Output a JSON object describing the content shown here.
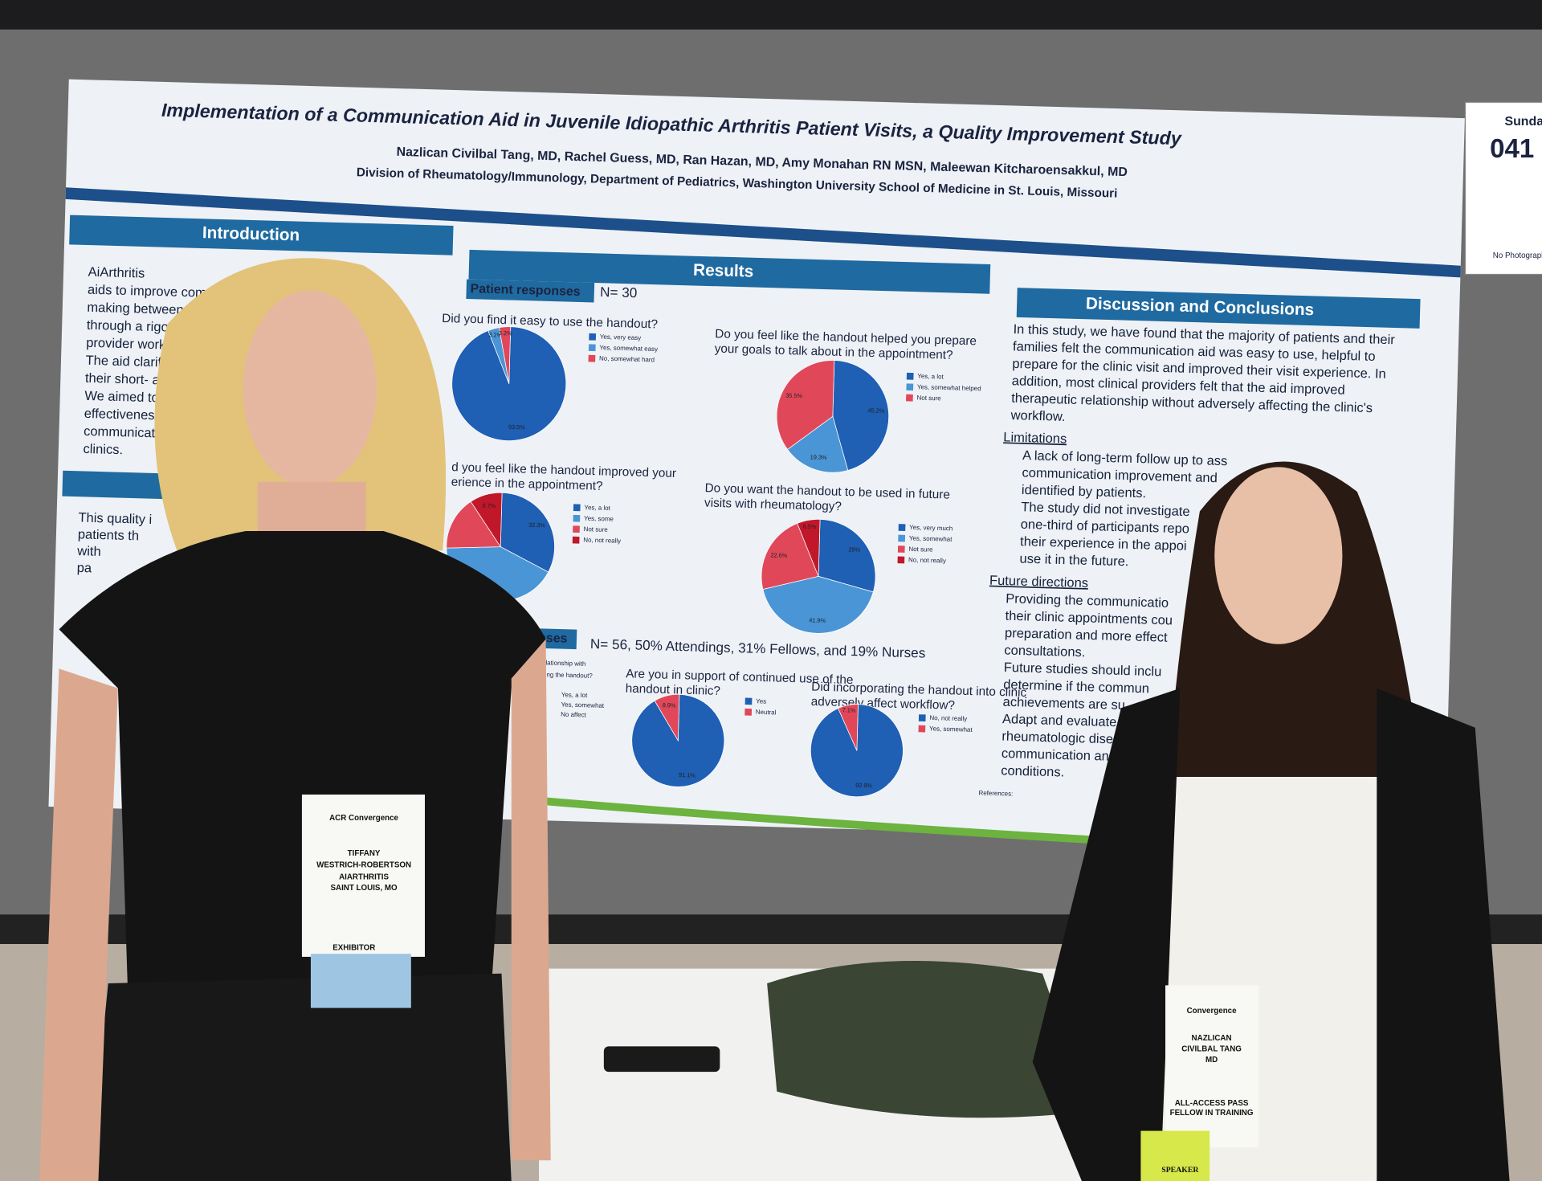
{
  "sign": {
    "day": "Sunda",
    "number": "041",
    "note": "No Photograph"
  },
  "poster": {
    "title": "Implementation of a Communication Aid in Juvenile Idiopathic Arthritis Patient Visits, a Quality Improvement Study",
    "authors": "Nazlican Civilbal Tang, MD, Rachel Guess, MD, Ran Hazan, MD, Amy Monahan RN MSN, Maleewan Kitcharoensakkul, MD",
    "affiliation": "Division of Rheumatology/Immunology, Department of Pediatrics, Washington University School of Medicine in St. Louis, Missouri",
    "introduction": {
      "heading": "Introduction",
      "lines": [
        "AiArthritis",
        "aids to improve comm",
        "making between JIA",
        "through a rigorous s",
        "provider workgroup",
        "The aid clarifies th",
        "their short- and lo",
        "We aimed to ev",
        "effectiveness o",
        "communicatio",
        "clinics."
      ]
    },
    "methods": {
      "lines": [
        "This quality i",
        "patients th",
        "with",
        "pa"
      ]
    },
    "results": {
      "heading": "Results",
      "patient_label": "Patient responses",
      "patient_n": "N= 30",
      "provider_label": "onses",
      "provider_n": "N= 56, 50% Attendings, 31% Fellows, and 19% Nurses",
      "partial_question": [
        "eutic relationship with",
        "d by using the handout?"
      ],
      "partial_legend": [
        "Yes, a lot",
        "Yes, somewhat",
        "No affect"
      ]
    },
    "discussion": {
      "heading": "Discussion and Conclusions",
      "lines": [
        "In this study, we have found that the majority of patients and their",
        "families felt the communication aid was easy to use, helpful to",
        "prepare for the clinic visit and improved their visit experience. In",
        "addition, most clinical providers felt that the aid improved",
        "therapeutic relationship without adversely affecting the clinic's",
        "workflow."
      ],
      "limitations_heading": "Limitations",
      "limitations": [
        "A lack of long-term follow up to ass",
        "communication improvement and",
        "identified by patients.",
        "The study did not investigate",
        "one-third of participants repo",
        "their experience in the appoi",
        "use it in the future."
      ],
      "future_heading": "Future directions",
      "future": [
        "Providing the communicatio",
        "their clinic appointments cou",
        "preparation and more effect",
        "consultations.",
        "Future studies should inclu",
        "determine if the commun",
        "achievements are su",
        "Adapt and evaluate",
        "rheumatologic dise",
        "communication and",
        "conditions."
      ],
      "references_heading": "References:"
    }
  },
  "pies": [
    {
      "question": [
        "Did you find it easy to use the handout?"
      ],
      "labels": [
        "Yes, very easy",
        "Yes, somewhat easy",
        "No, somewhat hard"
      ],
      "values": [
        93.5,
        3.2,
        3.2
      ],
      "value_labels": [
        "93.5%",
        "3.2%",
        "3.2%"
      ],
      "colors": [
        "#1f5fb4",
        "#4a95d6",
        "#e0485a"
      ]
    },
    {
      "question": [
        "Do you feel like the handout helped you prepare",
        "your goals to talk about in the appointment?"
      ],
      "labels": [
        "Yes, a lot",
        "Yes, somewhat helped",
        "Not sure"
      ],
      "values": [
        45.2,
        19.3,
        35.5
      ],
      "value_labels": [
        "45.2%",
        "19.3%",
        "35.5%"
      ],
      "colors": [
        "#1f5fb4",
        "#4a95d6",
        "#e0485a"
      ]
    },
    {
      "question": [
        "d you feel like the handout improved your",
        "erience in the appointment?"
      ],
      "labels": [
        "Yes, a lot",
        "Yes, some",
        "Not sure",
        "No, not really"
      ],
      "values": [
        32.3,
        41.9,
        16.1,
        9.7
      ],
      "value_labels": [
        "32.3%",
        null,
        null,
        "9.7%"
      ],
      "colors": [
        "#1f5fb4",
        "#4a95d6",
        "#e0485a",
        "#c0182a"
      ]
    },
    {
      "question": [
        "Do you want the handout to be used in future",
        "visits with rheumatology?"
      ],
      "labels": [
        "Yes, very much",
        "Yes, somewhat",
        "Not sure",
        "No, not really"
      ],
      "values": [
        29,
        41.9,
        22.6,
        6.5
      ],
      "value_labels": [
        "29%",
        "41.9%",
        "22.6%",
        "6.5%"
      ],
      "colors": [
        "#1f5fb4",
        "#4a95d6",
        "#e0485a",
        "#c0182a"
      ]
    },
    {
      "question": [
        "Are you in support of continued use of the",
        "handout in clinic?"
      ],
      "labels": [
        "Yes",
        "Neutral"
      ],
      "values": [
        91.1,
        8.9
      ],
      "value_labels": [
        "91.1%",
        "8.9%"
      ],
      "colors": [
        "#1f5fb4",
        "#e0485a"
      ]
    },
    {
      "question": [
        "Did incorporating the handout into clinic",
        "adversely affect workflow?"
      ],
      "labels": [
        "No, not really",
        "Yes, somewhat"
      ],
      "values": [
        92.9,
        7.1
      ],
      "value_labels": [
        "92.9%",
        "7.1%"
      ],
      "colors": [
        "#1f5fb4",
        "#e0485a"
      ]
    }
  ],
  "badges": {
    "left": {
      "event": "ACR Convergence",
      "first": "TIFFANY",
      "last": "WESTRICH-ROBERTSON",
      "org": "AIARTHRITIS",
      "city": "SAINT LOUIS, MO",
      "role": "EXHIBITOR"
    },
    "right": {
      "event": "Convergence",
      "first": "NAZLICAN",
      "last": "CIVILBAL TANG",
      "degree": "MD",
      "pass": "ALL-ACCESS PASS",
      "pass2": "FELLOW IN TRAINING",
      "role": "SPEAKER"
    }
  }
}
